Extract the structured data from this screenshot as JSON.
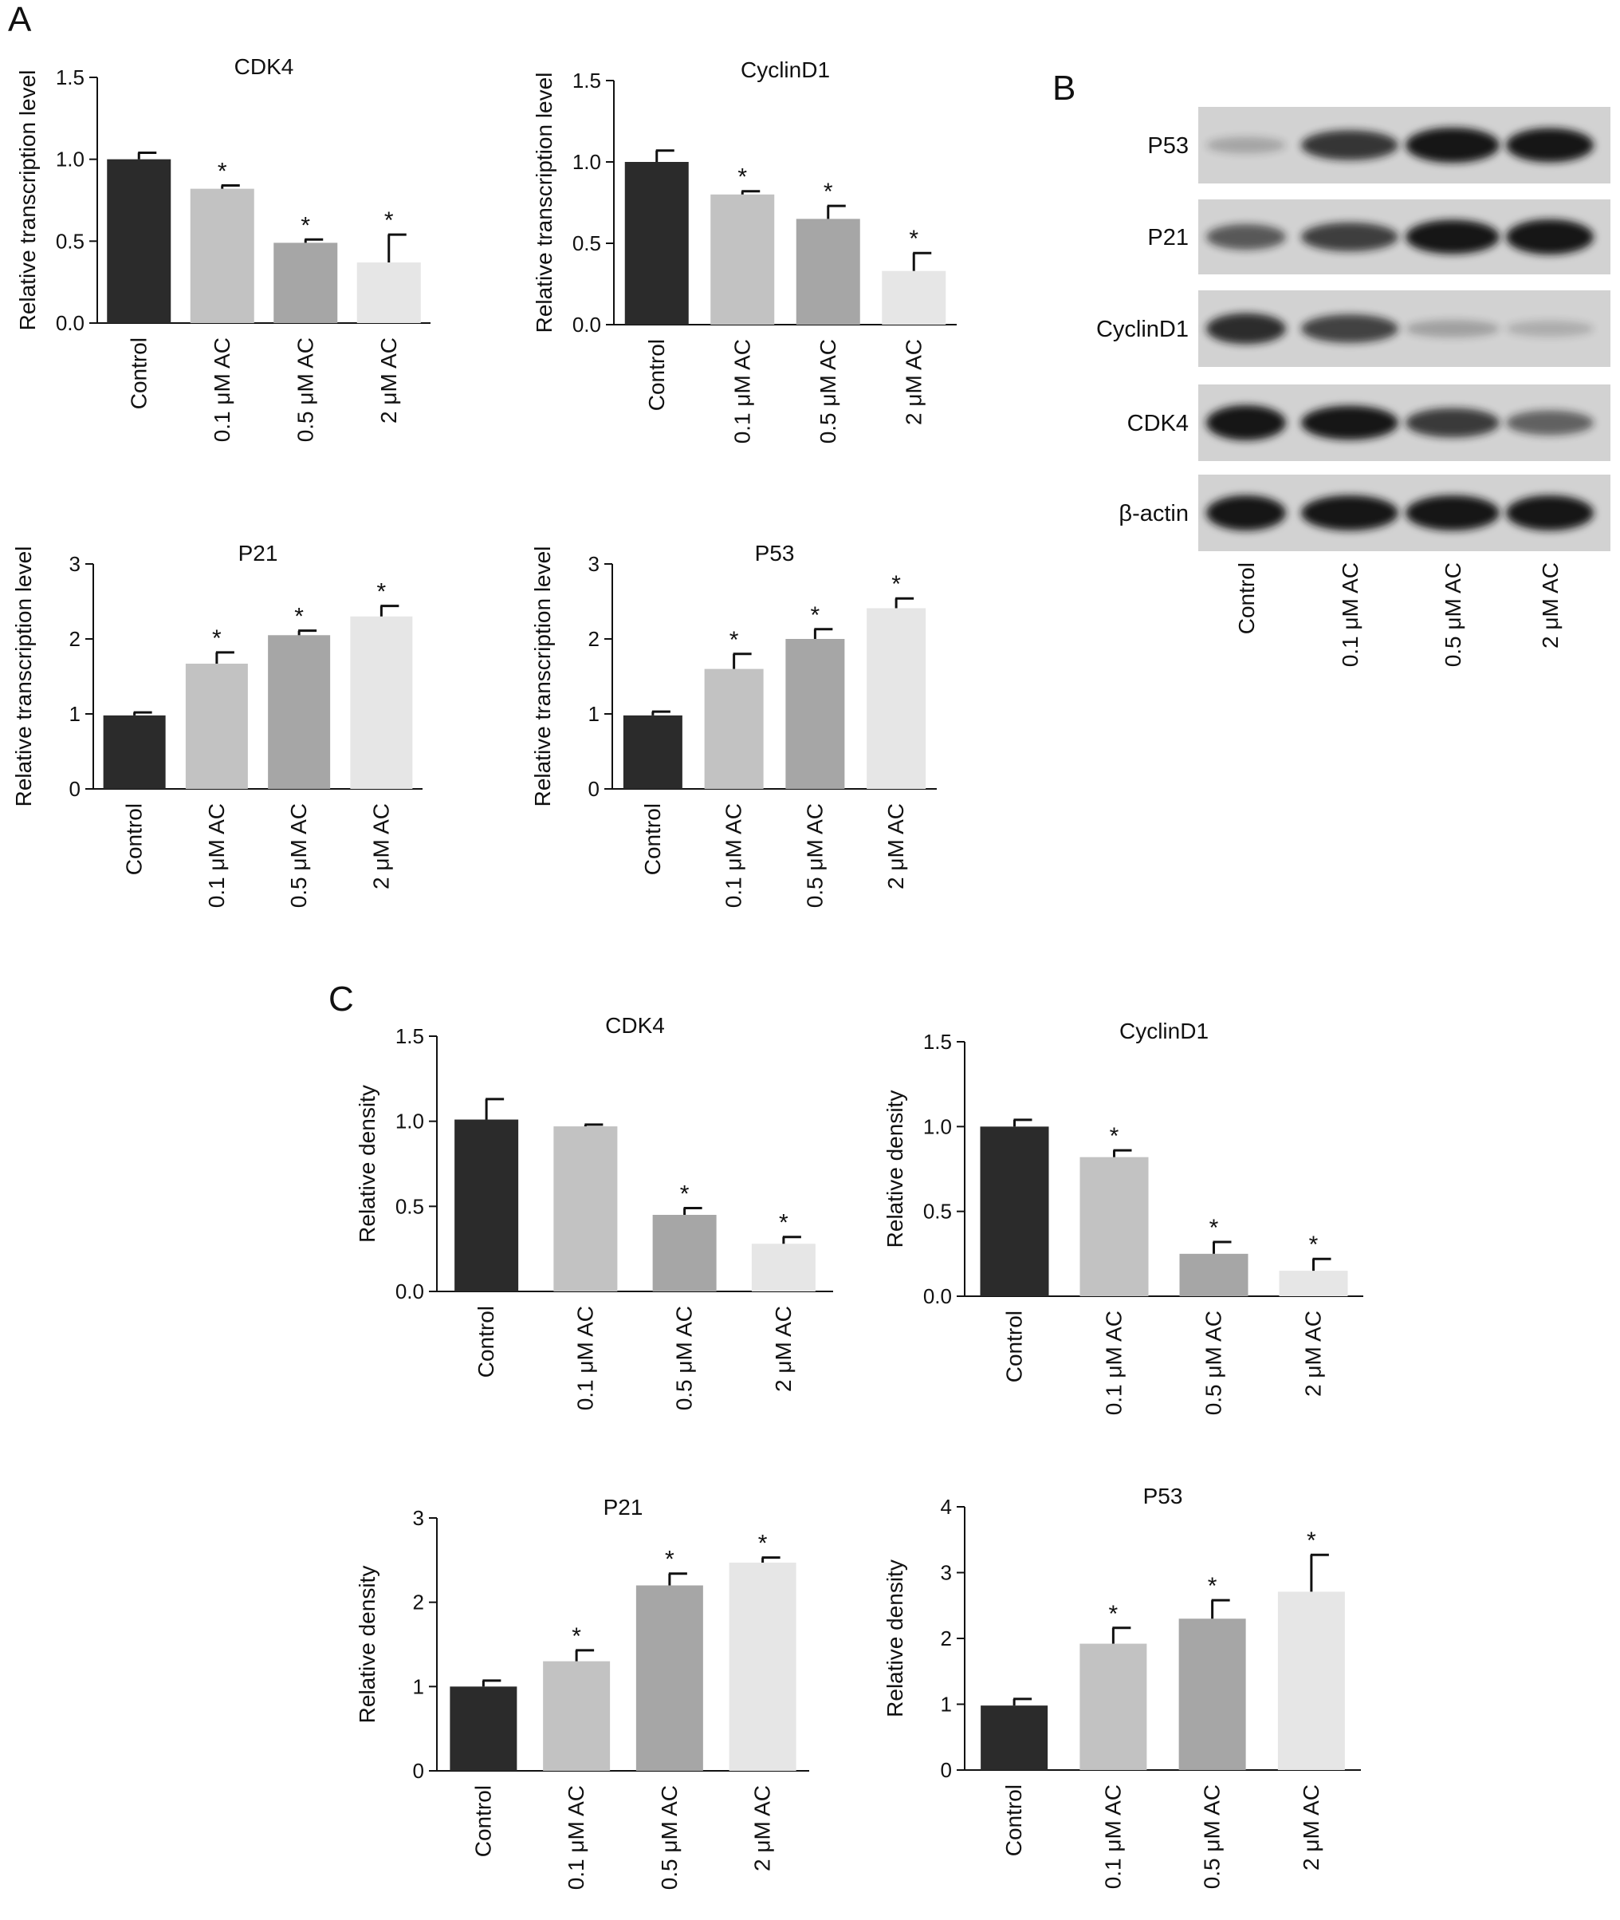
{
  "panels": {
    "a": "A",
    "b": "B",
    "c": "C"
  },
  "colors": {
    "bar_fills": [
      "#2b2b2b",
      "#c2c2c2",
      "#a6a6a6",
      "#e6e6e6"
    ],
    "axis": "#111111"
  },
  "chart_data": [
    {
      "type": "bar",
      "title": "CDK4",
      "ylabel": "Relative transcription level",
      "categories": [
        "Control",
        "0.1 μM AC",
        "0.5 μM AC",
        "2 μM AC"
      ],
      "values": [
        1.0,
        0.82,
        0.49,
        0.37
      ],
      "errors": [
        0.04,
        0.02,
        0.02,
        0.17
      ],
      "significance": [
        "",
        "*",
        "*",
        "*"
      ],
      "ylim": [
        0,
        1.5
      ],
      "yticks": [
        "0.0",
        "0.5",
        "1.0",
        "1.5"
      ],
      "grid": false
    },
    {
      "type": "bar",
      "title": "CyclinD1",
      "ylabel": "Relative transcription level",
      "categories": [
        "Control",
        "0.1 μM AC",
        "0.5 μM AC",
        "2 μM AC"
      ],
      "values": [
        1.0,
        0.8,
        0.65,
        0.33
      ],
      "errors": [
        0.07,
        0.02,
        0.08,
        0.11
      ],
      "significance": [
        "",
        "*",
        "*",
        "*"
      ],
      "ylim": [
        0,
        1.5
      ],
      "yticks": [
        "0.0",
        "0.5",
        "1.0",
        "1.5"
      ],
      "grid": false
    },
    {
      "type": "bar",
      "title": "P21",
      "ylabel": "Relative transcription level",
      "categories": [
        "Control",
        "0.1 μM AC",
        "0.5 μM AC",
        "2 μM AC"
      ],
      "values": [
        0.98,
        1.67,
        2.05,
        2.3
      ],
      "errors": [
        0.04,
        0.15,
        0.06,
        0.14
      ],
      "significance": [
        "",
        "*",
        "*",
        "*"
      ],
      "ylim": [
        0,
        3
      ],
      "yticks": [
        "0",
        "1",
        "2",
        "3"
      ],
      "grid": false
    },
    {
      "type": "bar",
      "title": "P53",
      "ylabel": "Relative transcription level",
      "categories": [
        "Control",
        "0.1 μM AC",
        "0.5 μM AC",
        "2 μM AC"
      ],
      "values": [
        0.98,
        1.6,
        2.0,
        2.41
      ],
      "errors": [
        0.05,
        0.2,
        0.13,
        0.13
      ],
      "significance": [
        "",
        "*",
        "*",
        "*"
      ],
      "ylim": [
        0,
        3
      ],
      "yticks": [
        "0",
        "1",
        "2",
        "3"
      ],
      "grid": false
    },
    {
      "type": "bar",
      "title": "CDK4",
      "ylabel": "Relative density",
      "categories": [
        "Control",
        "0.1 μM AC",
        "0.5 μM AC",
        "2 μM AC"
      ],
      "values": [
        1.01,
        0.97,
        0.45,
        0.28
      ],
      "errors": [
        0.12,
        0.01,
        0.04,
        0.04
      ],
      "significance": [
        "",
        "",
        "*",
        "*"
      ],
      "ylim": [
        0,
        1.5
      ],
      "yticks": [
        "0.0",
        "0.5",
        "1.0",
        "1.5"
      ],
      "grid": false
    },
    {
      "type": "bar",
      "title": "CyclinD1",
      "ylabel": "Relative density",
      "categories": [
        "Control",
        "0.1 μM AC",
        "0.5 μM AC",
        "2 μM AC"
      ],
      "values": [
        1.0,
        0.82,
        0.25,
        0.15
      ],
      "errors": [
        0.04,
        0.04,
        0.07,
        0.07
      ],
      "significance": [
        "",
        "*",
        "*",
        "*"
      ],
      "ylim": [
        0,
        1.5
      ],
      "yticks": [
        "0.0",
        "0.5",
        "1.0",
        "1.5"
      ],
      "grid": false
    },
    {
      "type": "bar",
      "title": "P21",
      "ylabel": "Relative density",
      "categories": [
        "Control",
        "0.1 μM AC",
        "0.5 μM AC",
        "2 μM AC"
      ],
      "values": [
        1.0,
        1.3,
        2.2,
        2.47
      ],
      "errors": [
        0.07,
        0.13,
        0.14,
        0.06
      ],
      "significance": [
        "",
        "*",
        "*",
        "*"
      ],
      "ylim": [
        0,
        3
      ],
      "yticks": [
        "0",
        "1",
        "2",
        "3"
      ],
      "grid": false
    },
    {
      "type": "bar",
      "title": "P53",
      "ylabel": "Relative density",
      "categories": [
        "Control",
        "0.1 μM AC",
        "0.5 μM AC",
        "2 μM AC"
      ],
      "values": [
        0.98,
        1.92,
        2.3,
        2.71
      ],
      "errors": [
        0.1,
        0.24,
        0.28,
        0.56
      ],
      "significance": [
        "",
        "*",
        "*",
        "*"
      ],
      "ylim": [
        0,
        4
      ],
      "yticks": [
        "0",
        "1",
        "2",
        "3",
        "4"
      ],
      "grid": false
    }
  ],
  "western_blot": {
    "rows": [
      "P53",
      "P21",
      "CyclinD1",
      "CDK4",
      "β-actin"
    ],
    "lanes": [
      "Control",
      "0.1 μM AC",
      "0.5 μM AC",
      "2 μM AC"
    ],
    "band_intensity": [
      [
        0.12,
        0.75,
        1.0,
        0.95
      ],
      [
        0.55,
        0.7,
        0.95,
        1.0
      ],
      [
        0.8,
        0.68,
        0.15,
        0.08
      ],
      [
        1.0,
        0.95,
        0.72,
        0.5
      ],
      [
        1.0,
        1.0,
        1.0,
        1.0
      ]
    ]
  }
}
